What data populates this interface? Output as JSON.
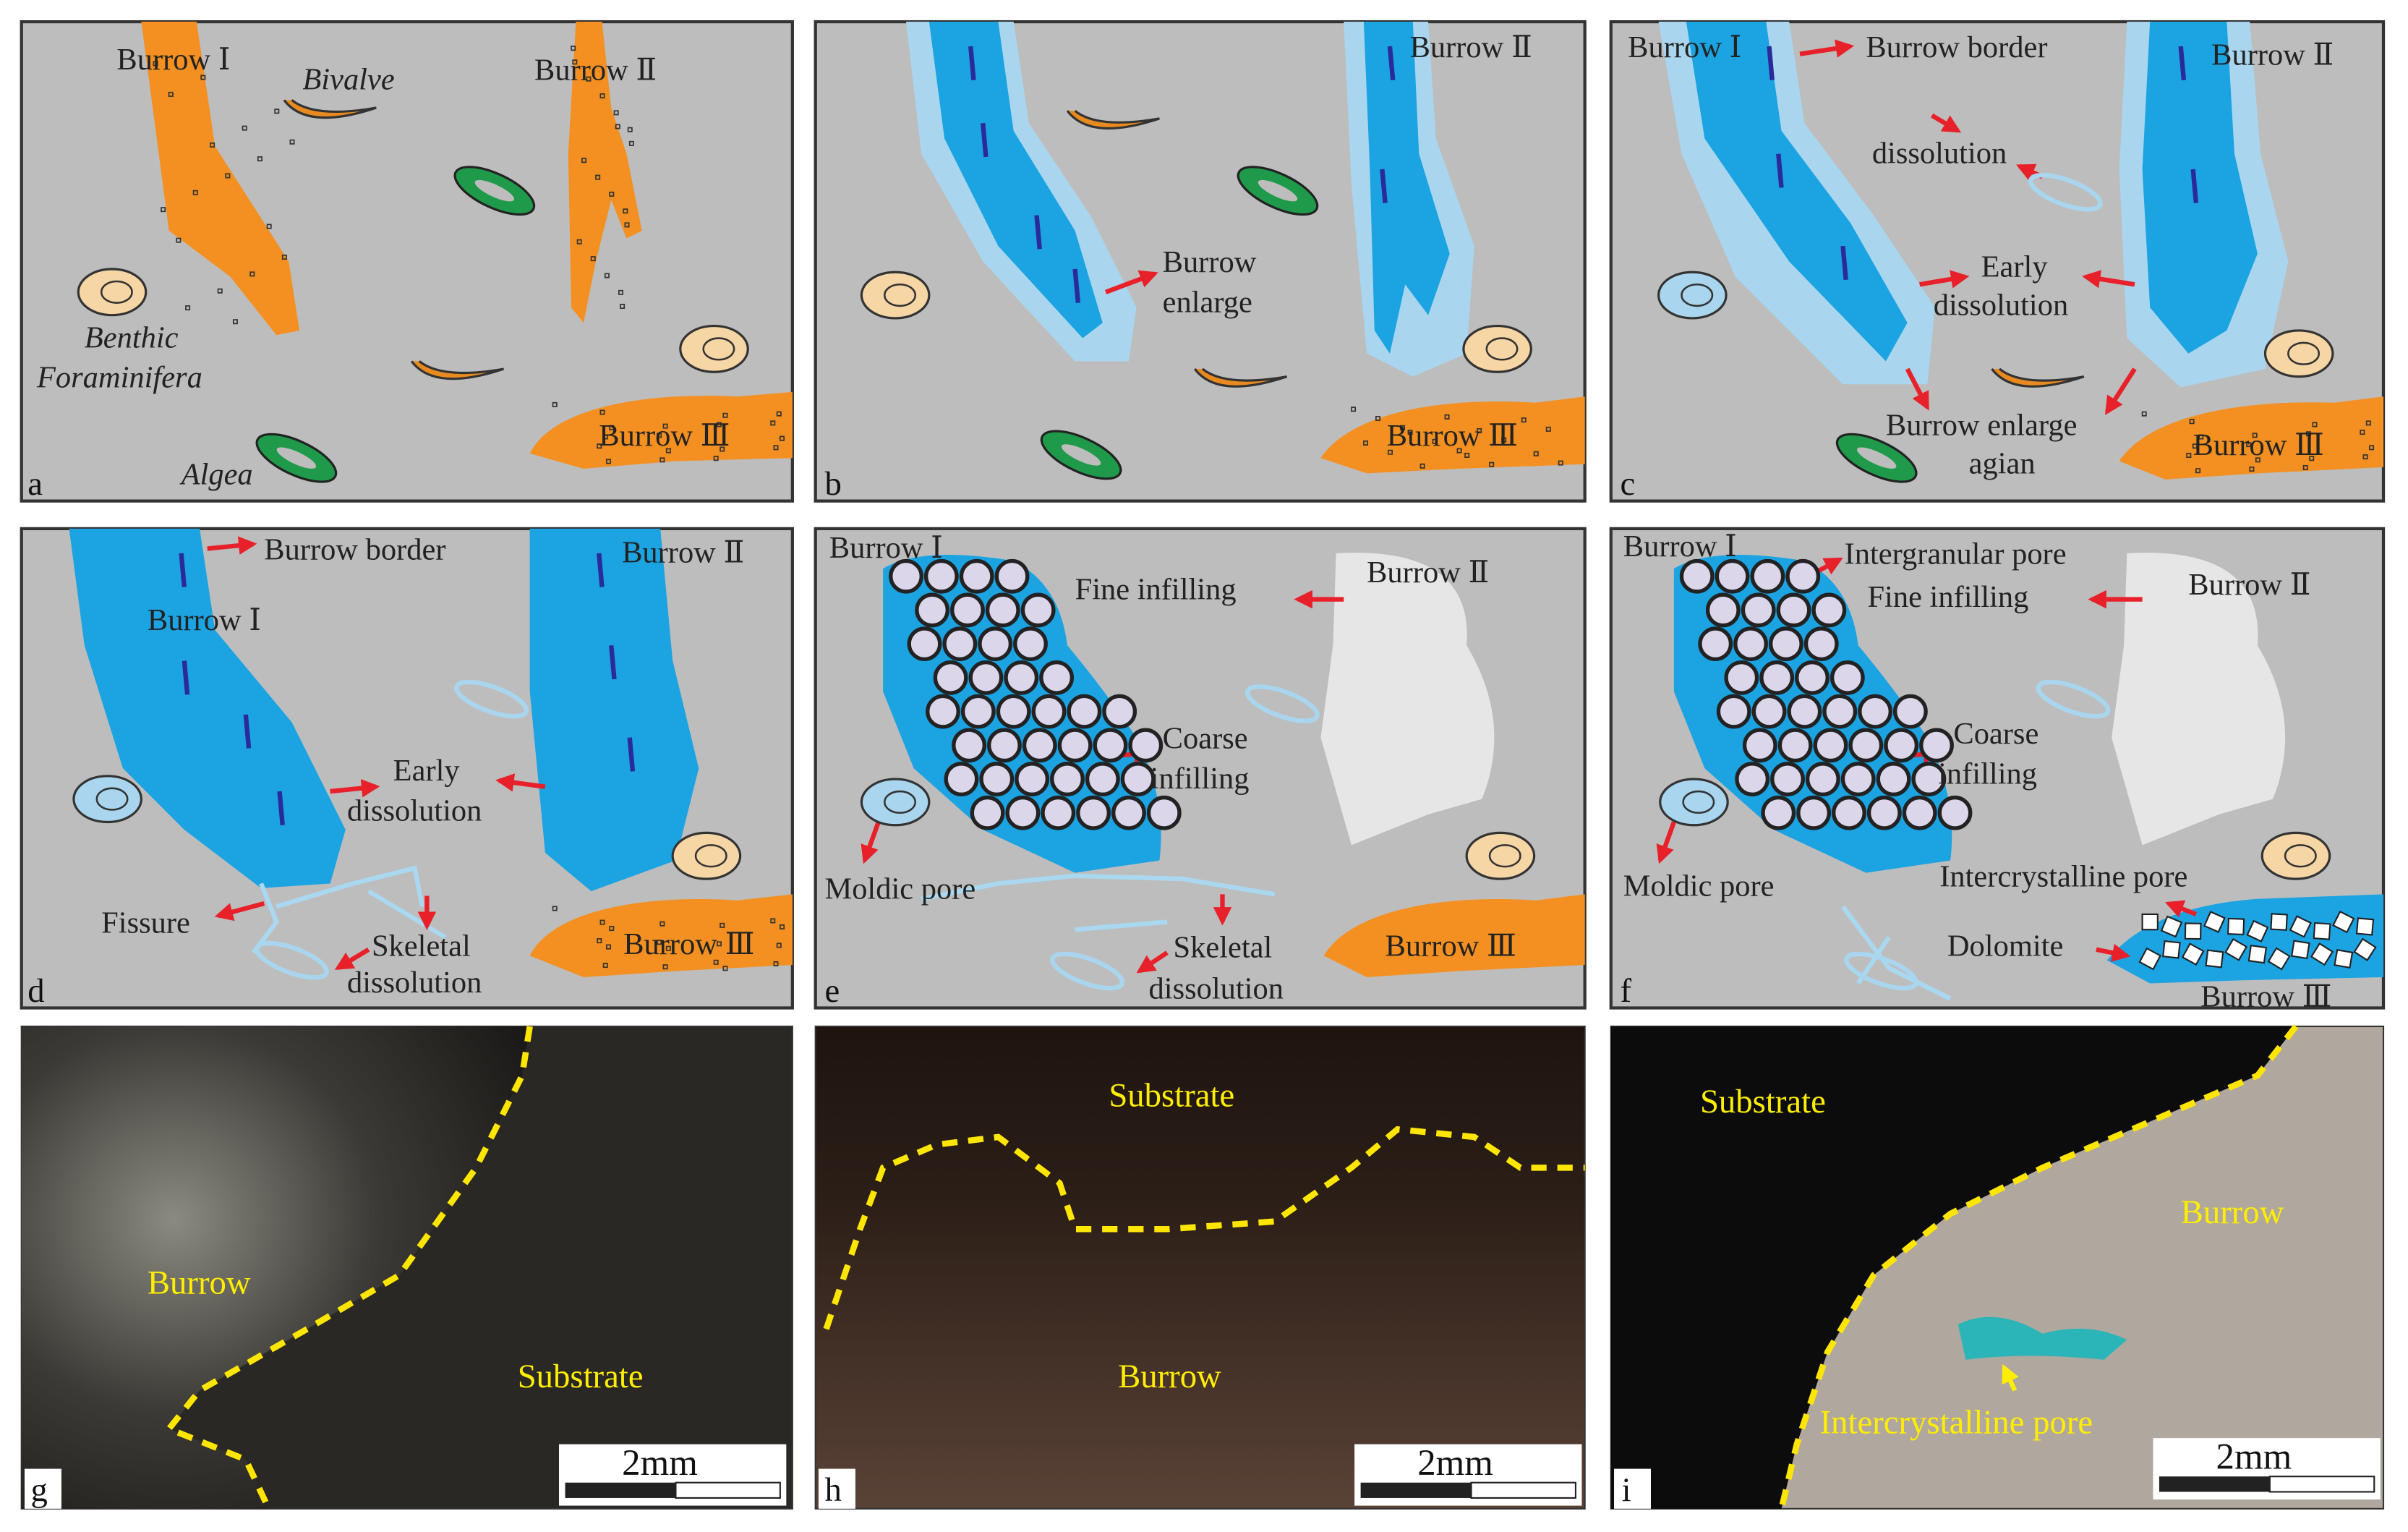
{
  "panels": [
    {
      "label": "a",
      "texts": [
        "Burrow Ⅰ",
        "Bivalve",
        "Burrow Ⅱ",
        "Benthic",
        "Foraminifera",
        "Algea",
        "Burrow Ⅲ"
      ]
    },
    {
      "label": "b",
      "texts": [
        "Burrow Ⅱ",
        "Burrow",
        "enlarge",
        "Burrow Ⅲ"
      ]
    },
    {
      "label": "c",
      "texts": [
        "Burrow Ⅰ",
        "Burrow border",
        "Burrow Ⅱ",
        "dissolution",
        "Early",
        "dissolution",
        "Burrow enlarge",
        "agian",
        "Burrow Ⅲ"
      ]
    },
    {
      "label": "d",
      "texts": [
        "Burrow border",
        "Burrow Ⅱ",
        "Burrow Ⅰ",
        "Early",
        "dissolution",
        "Fissure",
        "Skeletal",
        "dissolution",
        "Burrow Ⅲ"
      ]
    },
    {
      "label": "e",
      "texts": [
        "Burrow Ⅰ",
        "Fine  infilling",
        "Burrow Ⅱ",
        "Coarse",
        "infilling",
        "Moldic pore",
        "Skeletal",
        "dissolution",
        "Burrow Ⅲ"
      ]
    },
    {
      "label": "f",
      "texts": [
        "Burrow Ⅰ",
        "Intergranular pore",
        "Fine  infilling",
        "Burrow Ⅱ",
        "Coarse",
        "infilling",
        "Moldic pore",
        "Intercrystalline  pore",
        "Dolomite",
        "Burrow Ⅲ"
      ]
    },
    {
      "label": "g",
      "texts": [
        "Burrow",
        "Substrate",
        "2mm"
      ]
    },
    {
      "label": "h",
      "texts": [
        "Substrate",
        "Burrow",
        "2mm"
      ]
    },
    {
      "label": "i",
      "texts": [
        "Substrate",
        "Burrow",
        "Intercrystalline  pore",
        "2mm"
      ]
    }
  ]
}
